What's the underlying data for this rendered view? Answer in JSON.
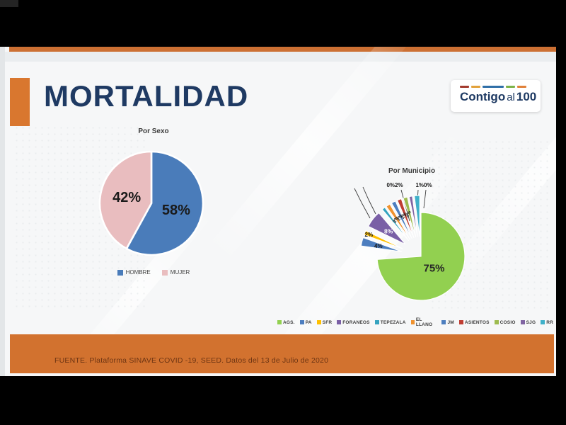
{
  "header": {
    "title": "MORTALIDAD",
    "accent_color": "#d9772f",
    "topbar_color": "#cc7033"
  },
  "logo": {
    "part1": "Contigo",
    "part2": "al",
    "part3": "100",
    "text_color": "#1e3a63",
    "dash_colors": [
      "#a33b2e",
      "#e2a23b",
      "#2f6fa7",
      "#7cb34a",
      "#e0813a"
    ]
  },
  "footer": {
    "text": "FUENTE. Plataforma SINAVE COVID -19, SEED. Datos del 13 de Julio de 2020",
    "band_color": "#d2722f"
  },
  "chart_data": [
    {
      "type": "pie",
      "title": "Por Sexo",
      "categories": [
        "HOMBRE",
        "MUJER"
      ],
      "values": [
        58,
        42
      ],
      "colors": [
        "#4a7cba",
        "#e9bdbf"
      ],
      "data_labels": [
        "58%",
        "42%"
      ],
      "legend_position": "bottom",
      "start_angle_deg": 0,
      "clockwise": true
    },
    {
      "type": "pie",
      "title": "Por Municipio",
      "exploded": true,
      "categories": [
        "AGS.",
        "PA",
        "SFR",
        "FORANEOS",
        "TEPEZALA",
        "EL LLANO",
        "JM",
        "ASIENTOS",
        "COSIO",
        "SJG",
        "RR"
      ],
      "values": [
        75,
        4,
        2,
        8,
        0,
        2,
        2,
        2,
        2,
        1,
        0
      ],
      "colors": [
        "#92d050",
        "#4d7ebf",
        "#ffc000",
        "#7a5fa6",
        "#35a3bf",
        "#f0922e",
        "#4d7ebf",
        "#bf3d32",
        "#9dbb4f",
        "#8064a2",
        "#3fb0c9"
      ],
      "data_labels": [
        "75%",
        "4%",
        "2%",
        "8%",
        "",
        "2%",
        "2%",
        "2%",
        "2%",
        "",
        ""
      ],
      "callout_labels": [
        "0%2%",
        "1%0%"
      ],
      "legend_position": "bottom",
      "start_angle_deg": 0,
      "clockwise": true
    }
  ]
}
